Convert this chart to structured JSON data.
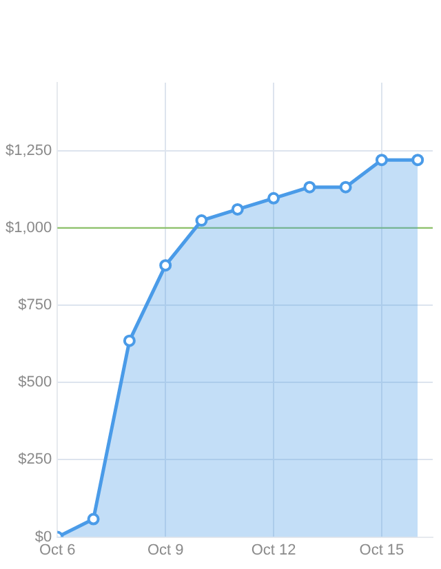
{
  "chart_data": {
    "type": "area",
    "x": [
      "--10-06",
      "--10-07",
      "--10-08",
      "--10-09",
      "--10-10",
      "--10-11",
      "--10-12",
      "--10-13",
      "--10-14",
      "--10-15",
      "--10-16"
    ],
    "series": [
      {
        "color": "#4a9be8",
        "values": [
          0,
          58,
          635,
          879,
          1024,
          1060,
          1096,
          1132,
          1132,
          1220,
          1220
        ]
      }
    ],
    "xlim": [
      "--10-06",
      "--10-16T10:00"
    ],
    "xticks": [
      {
        "value": "--10-06",
        "label": "Oct 6"
      },
      {
        "value": "--10-09",
        "label": "Oct 9"
      },
      {
        "value": "--10-12",
        "label": "Oct 12"
      },
      {
        "value": "--10-15",
        "label": "Oct 15"
      }
    ],
    "ylim": [
      0,
      1470
    ],
    "yticks": [
      {
        "value": 0,
        "label": "$0"
      },
      {
        "value": 250,
        "label": "$250"
      },
      {
        "value": 500,
        "label": "$500"
      },
      {
        "value": 750,
        "label": "$750"
      },
      {
        "value": 1000,
        "label": "$1,000"
      },
      {
        "value": 1250,
        "label": "$1,250"
      }
    ],
    "ref_lines": [
      {
        "axis": "y",
        "value": 1000,
        "color": "#8cc06a"
      }
    ],
    "grid": true,
    "legend": false,
    "marker": "circle"
  }
}
